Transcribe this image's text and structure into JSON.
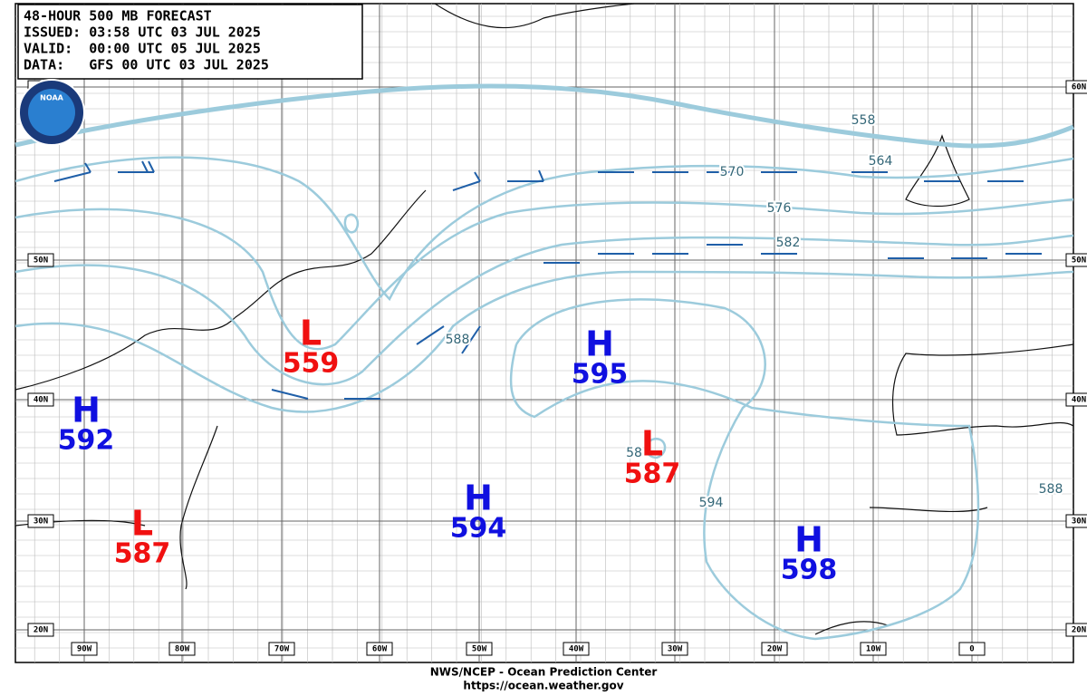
{
  "header": {
    "lines": [
      "48-HOUR 500 MB FORECAST",
      "ISSUED: 03:58 UTC 03 JUL 2025",
      "VALID:  00:00 UTC 05 JUL 2025",
      "DATA:   GFS 00 UTC 03 JUL 2025"
    ],
    "logo": "NOAA"
  },
  "centers": [
    {
      "type": "H",
      "value": 592
    },
    {
      "type": "L",
      "value": 587
    },
    {
      "type": "L",
      "value": 559
    },
    {
      "type": "H",
      "value": 594
    },
    {
      "type": "H",
      "value": 595
    },
    {
      "type": "L",
      "value": 587
    },
    {
      "type": "H",
      "value": 598
    }
  ],
  "contour_labels": [
    558,
    564,
    570,
    576,
    582,
    588,
    594,
    588,
    58
  ],
  "lat_labels": [
    "60N",
    "50N",
    "40N",
    "30N",
    "20N"
  ],
  "lon_labels": [
    "90W",
    "80W",
    "70W",
    "60W",
    "50W",
    "40W",
    "30W",
    "20W",
    "10W",
    "0"
  ],
  "footer": [
    "NWS/NCEP - Ocean Prediction Center",
    "https://ocean.weather.gov"
  ]
}
